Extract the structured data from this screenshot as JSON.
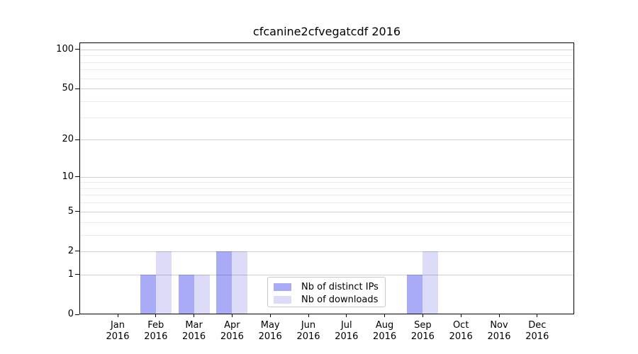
{
  "chart_data": {
    "type": "bar",
    "title": "cfcanine2cfvegatcdf 2016",
    "categories": [
      "Jan",
      "Feb",
      "Mar",
      "Apr",
      "May",
      "Jun",
      "Jul",
      "Aug",
      "Sep",
      "Oct",
      "Nov",
      "Dec"
    ],
    "year": "2016",
    "series": [
      {
        "name": "Nb of distinct IPs",
        "color": "#aaabf6",
        "values": [
          0,
          1,
          1,
          2,
          0,
          0,
          0,
          0,
          1,
          0,
          0,
          0
        ]
      },
      {
        "name": "Nb of downloads",
        "color": "#dcdcf8",
        "values": [
          0,
          2,
          1,
          2,
          0,
          0,
          0,
          0,
          2,
          0,
          0,
          0
        ]
      }
    ],
    "xlabel": "",
    "ylabel": "",
    "yticks": [
      0,
      1,
      2,
      5,
      10,
      20,
      50,
      100
    ],
    "minor_yticks": [
      3,
      4,
      6,
      7,
      8,
      9,
      30,
      40,
      60,
      70,
      80,
      90
    ],
    "scale": "log1p",
    "ylim": [
      0,
      113
    ],
    "grid": true,
    "legend_position": "lower-center",
    "colors": {
      "background": "#ffffff",
      "axis": "#000000",
      "text": "#000000",
      "grid_major": "rgba(0,0,0,0.19)",
      "grid_minor": "rgba(0,0,0,0.08)"
    }
  }
}
